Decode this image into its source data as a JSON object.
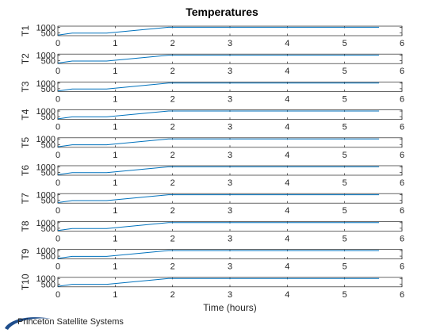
{
  "chart_data": {
    "type": "line",
    "title": "Temperatures",
    "xlabel": "Time (hours)",
    "xlim": [
      0,
      6
    ],
    "xticks": [
      0,
      1,
      2,
      3,
      4,
      5,
      6
    ],
    "ylim": [
      250,
      1100
    ],
    "yticks": [
      500,
      1000
    ],
    "ytick_labels": [
      "500",
      "1000"
    ],
    "line_color": "#0072bd",
    "grid": false,
    "subplots": [
      {
        "ylabel": "T1"
      },
      {
        "ylabel": "T2"
      },
      {
        "ylabel": "T3"
      },
      {
        "ylabel": "T4"
      },
      {
        "ylabel": "T5"
      },
      {
        "ylabel": "T6"
      },
      {
        "ylabel": "T7"
      },
      {
        "ylabel": "T8"
      },
      {
        "ylabel": "T9"
      },
      {
        "ylabel": "T10"
      }
    ],
    "series_x": [
      0,
      0.25,
      0.85,
      1.93,
      5.6
    ],
    "series_y": [
      300,
      480,
      480,
      1000,
      1000
    ]
  },
  "branding": {
    "logo_text": "Princeton Satellite Systems"
  }
}
